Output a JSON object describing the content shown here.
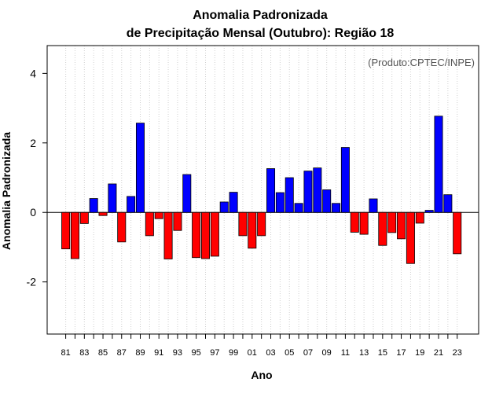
{
  "chart_data": {
    "type": "bar",
    "title_line1": "Anomalia Padronizada",
    "title_line2": "de Precipitação Mensal (Outubro): Região 18",
    "xlabel": "Ano",
    "ylabel": "Anomalia Padronizada",
    "credit": "(Produto:CPTEC/INPE)",
    "ylim": [
      -3.5,
      4.8
    ],
    "yticks": [
      -2,
      0,
      2,
      4
    ],
    "ytick_labels": [
      "-2",
      "0",
      "2",
      "4"
    ],
    "positive_color": "#0000ff",
    "negative_color": "#ff0000",
    "grid": true,
    "categories": [
      "81",
      "82",
      "83",
      "84",
      "85",
      "86",
      "87",
      "88",
      "89",
      "90",
      "91",
      "92",
      "93",
      "94",
      "95",
      "96",
      "97",
      "98",
      "99",
      "00",
      "01",
      "02",
      "03",
      "04",
      "05",
      "06",
      "07",
      "08",
      "09",
      "10",
      "11",
      "12",
      "13",
      "14",
      "15",
      "16",
      "17",
      "18",
      "19",
      "20",
      "21",
      "22",
      "23"
    ],
    "xtick_labels": [
      "81",
      "",
      "83",
      "",
      "85",
      "",
      "87",
      "",
      "89",
      "",
      "91",
      "",
      "93",
      "",
      "95",
      "",
      "97",
      "",
      "99",
      "",
      "01",
      "",
      "03",
      "",
      "05",
      "",
      "07",
      "",
      "09",
      "",
      "11",
      "",
      "13",
      "",
      "15",
      "",
      "17",
      "",
      "19",
      "",
      "21",
      "",
      "23"
    ],
    "values": [
      -1.05,
      -1.33,
      -0.32,
      0.4,
      -0.09,
      0.82,
      -0.85,
      0.46,
      2.57,
      -0.67,
      -0.18,
      -1.34,
      -0.52,
      1.09,
      -1.3,
      -1.33,
      -1.26,
      0.3,
      0.58,
      -0.67,
      -1.03,
      -0.67,
      1.26,
      0.57,
      1.0,
      0.26,
      1.19,
      1.28,
      0.65,
      0.26,
      1.87,
      -0.57,
      -0.63,
      0.39,
      -0.95,
      -0.58,
      -0.76,
      -1.47,
      -0.31,
      0.06,
      2.77,
      0.51,
      -1.19
    ]
  }
}
